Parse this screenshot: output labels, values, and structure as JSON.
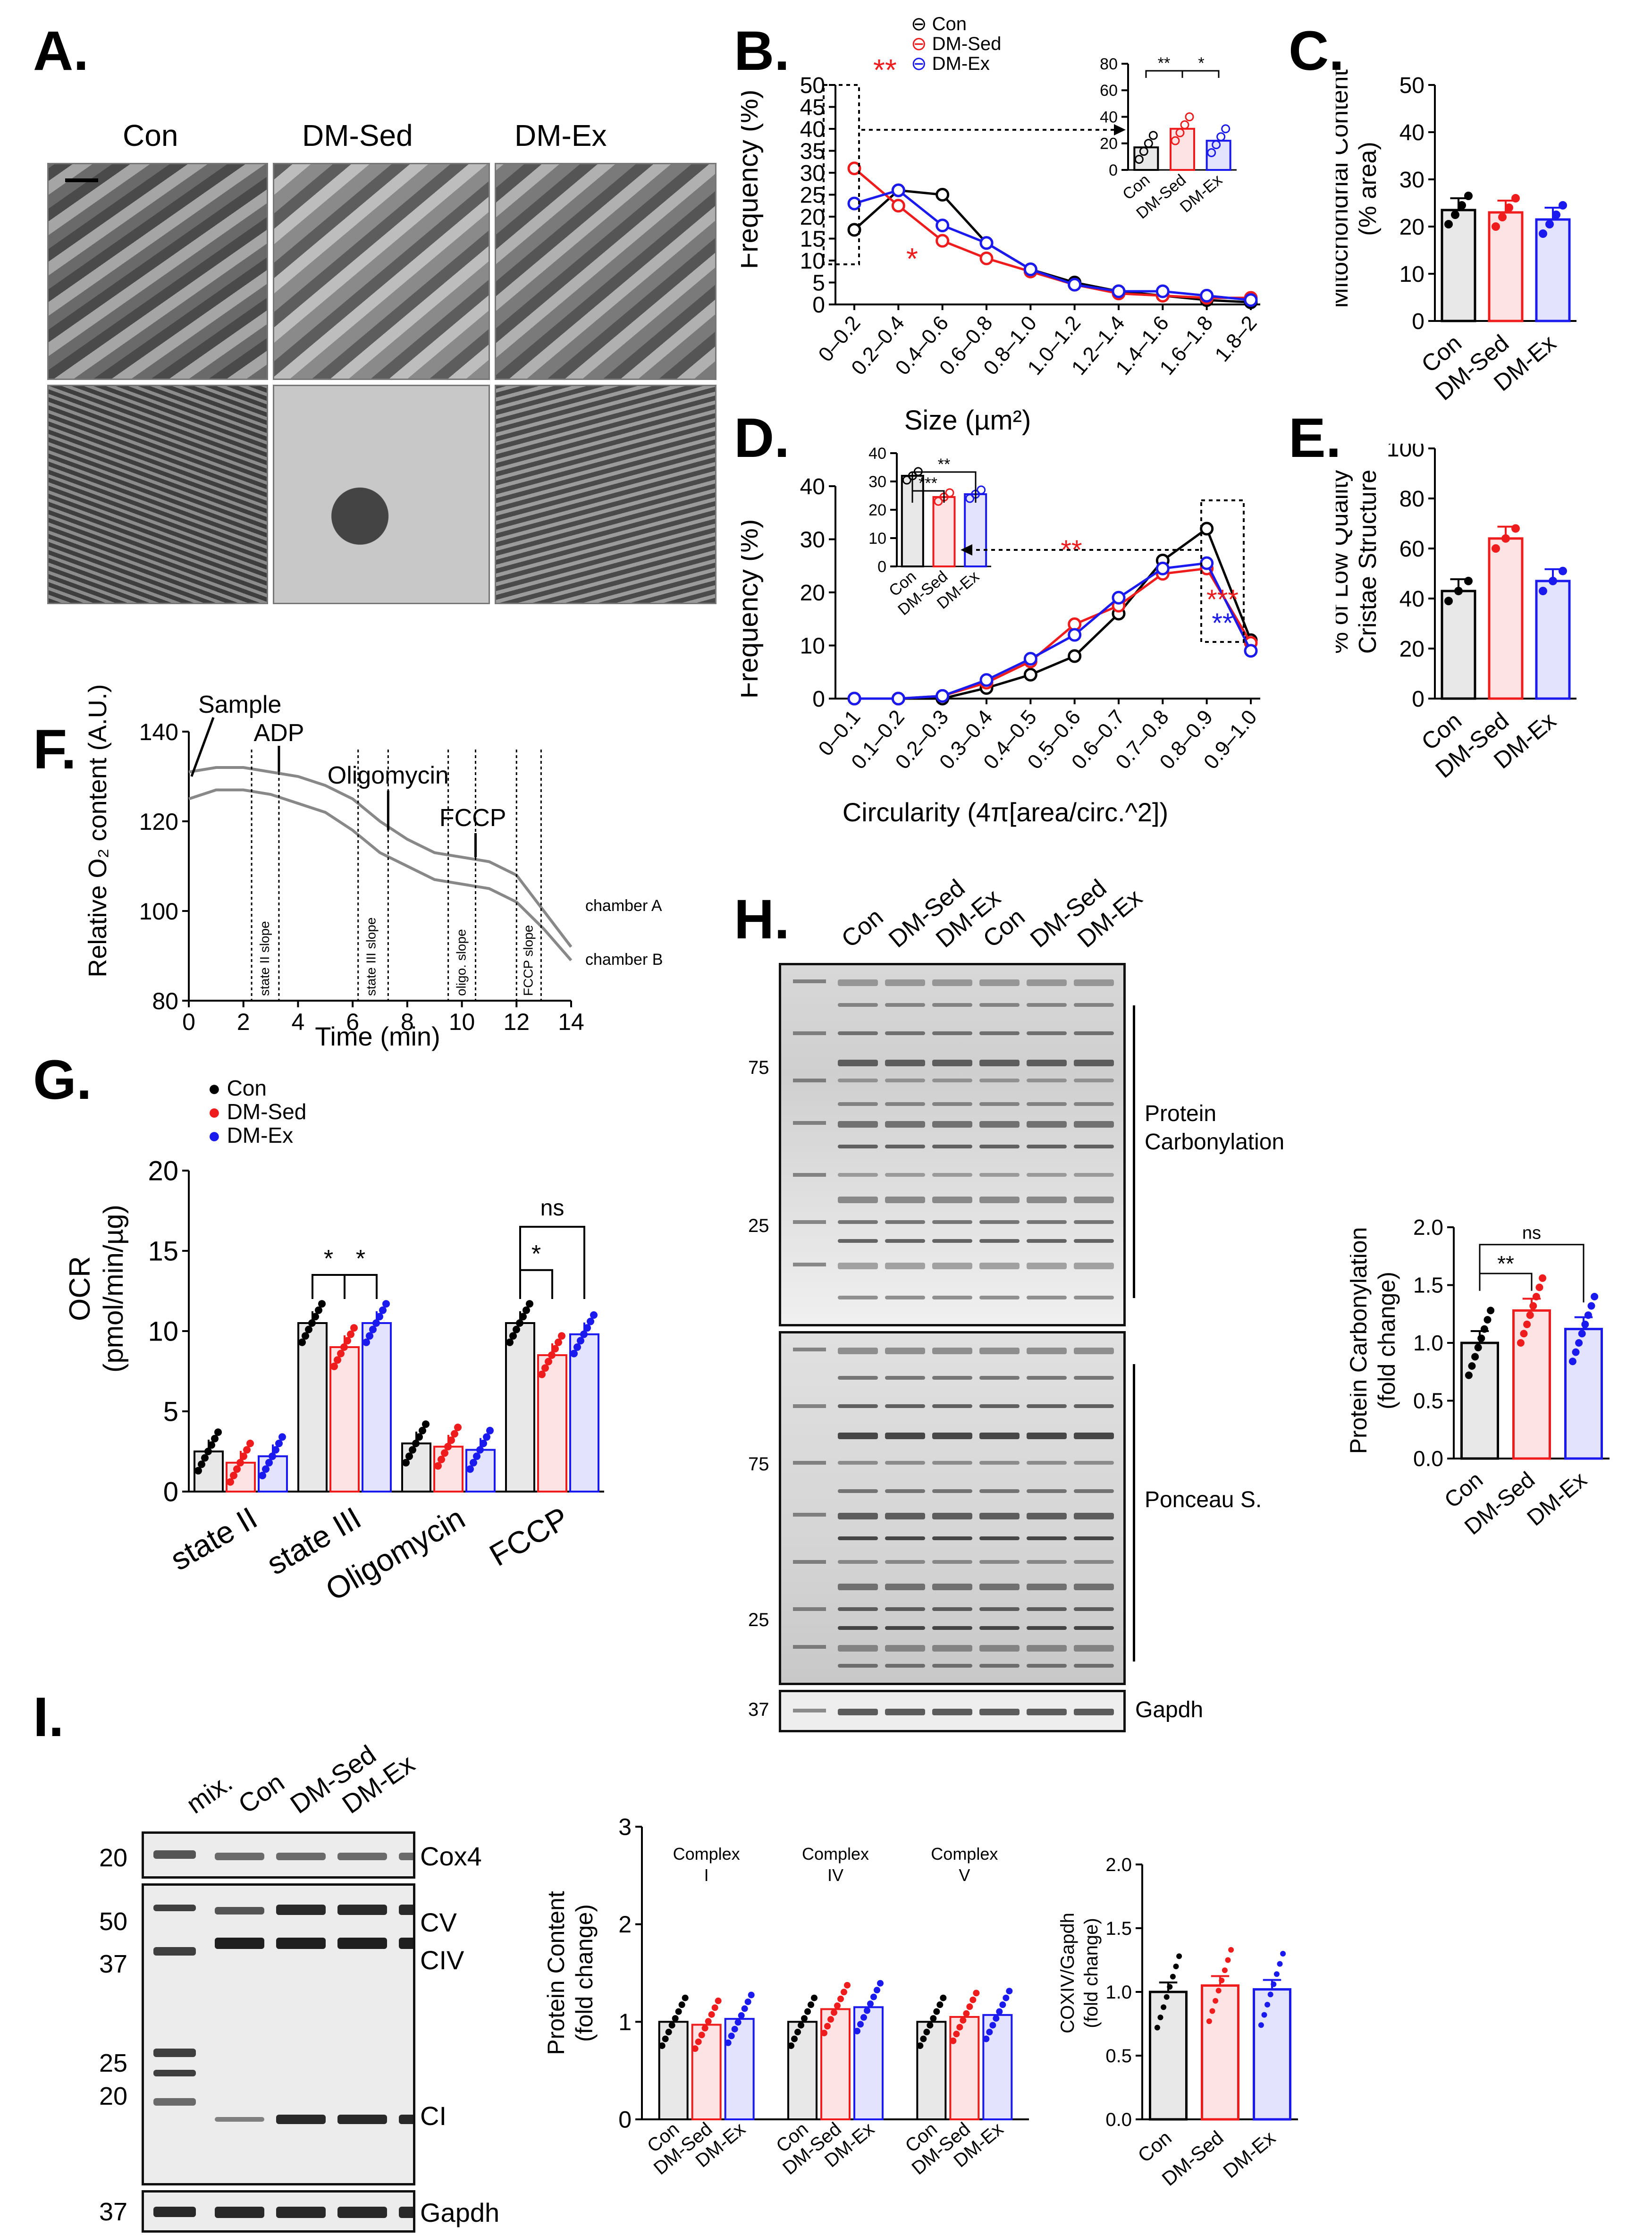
{
  "colors": {
    "con": "#000000",
    "dm_sed": "#ee1c1c",
    "dm_ex": "#1a1aee"
  },
  "panel_letters": {
    "A": "A.",
    "B": "B.",
    "C": "C.",
    "D": "D.",
    "E": "E.",
    "F": "F.",
    "G": "G.",
    "H": "H.",
    "I": "I."
  },
  "panelA": {
    "columns": [
      "Con",
      "DM-Sed",
      "DM-Ex"
    ]
  },
  "panelB": {
    "ylabel": "Frequency (%)",
    "xlabel": "Size (µm²)"
  },
  "panelC": {
    "ylabel1": "Mitochondrial Content",
    "ylabel2": "(% area)"
  },
  "panelD": {
    "ylabel": "Frequency (%)",
    "xlabel": "Circularity (4π[area/circ.^2])"
  },
  "panelE": {
    "ylabel1": "% of Low Quality",
    "ylabel2": "Cristae Structure"
  },
  "panelF": {
    "ylabel": "Relative O₂ content (A.U.)",
    "xlabel": "Time (min)",
    "annotations": {
      "sample": "Sample",
      "adp": "ADP",
      "oligo": "Oligomycin",
      "fccp": "FCCP",
      "chamberA": "chamber A",
      "chamberB": "chamber B",
      "s2": "state II slope",
      "s3": "state III slope",
      "so": "oligo. slope",
      "sf": "FCCP slope"
    }
  },
  "panelG": {
    "ylabel1": "OCR",
    "ylabel2": "(pmol/min/µg)",
    "legend": [
      "Con",
      "DM-Sed",
      "DM-Ex"
    ]
  },
  "panelH": {
    "lanes": [
      "Con",
      "DM-Sed",
      "DM-Ex",
      "Con",
      "DM-Sed",
      "DM-Ex"
    ],
    "mw_top": [
      "75",
      "25"
    ],
    "mw_bottom": [
      "75",
      "25"
    ],
    "mw_gapdh": "37",
    "label1a": "Protein",
    "label1b": "Carbonylation",
    "label2": "Ponceau S.",
    "label3": "Gapdh",
    "bar_ylabel1": "Protein Carbonylation",
    "bar_ylabel2": "(fold change)"
  },
  "panelI": {
    "lanes": [
      "mix.",
      "Con",
      "DM-Sed",
      "DM-Ex"
    ],
    "mw1": "20",
    "mw2": [
      "50",
      "37",
      "25",
      "20"
    ],
    "mw3": "37",
    "bands": {
      "cox4": "Cox4",
      "cv": "CV",
      "civ": "CIV",
      "ci": "CI",
      "gapdh": "Gapdh"
    },
    "bar1_ylabel1": "Protein Content",
    "bar1_ylabel2": "(fold change)",
    "complex_labels": [
      [
        "Complex",
        "I"
      ],
      [
        "Complex",
        "IV"
      ],
      [
        "Complex",
        "V"
      ]
    ],
    "bar2_ylabel1": "COXIV/Gapdh",
    "bar2_ylabel2": "(fold change)"
  },
  "chart_data": [
    {
      "id": "B",
      "type": "line",
      "title": "",
      "xlabel": "Size (µm²)",
      "ylabel": "Frequency (%)",
      "categories": [
        "0–0.2",
        "0.2–0.4",
        "0.4–0.6",
        "0.6–0.8",
        "0.8–1.0",
        "1.0–1.2",
        "1.2–1.4",
        "1.4–1.6",
        "1.6–1.8",
        "1.8–2"
      ],
      "ylim": [
        0,
        50
      ],
      "yticks": [
        0,
        5,
        10,
        15,
        20,
        25,
        30,
        35,
        40,
        45,
        50
      ],
      "series": [
        {
          "name": "Con",
          "values": [
            17,
            26,
            25,
            14,
            8,
            5,
            3,
            2,
            1,
            0.5
          ]
        },
        {
          "name": "DM-Sed",
          "values": [
            31,
            22.5,
            14.5,
            10.5,
            7.5,
            4.5,
            2.5,
            2,
            1.5,
            1.5
          ]
        },
        {
          "name": "DM-Ex",
          "values": [
            23,
            26,
            18,
            14,
            8,
            4.5,
            3,
            3,
            2,
            1
          ]
        }
      ],
      "significance": [
        "**",
        "*"
      ],
      "inset": {
        "type": "bar",
        "categories": [
          "Con",
          "DM-Sed",
          "DM-Ex"
        ],
        "values": [
          17,
          31,
          22
        ],
        "ylim": [
          0,
          80
        ],
        "yticks": [
          0,
          20,
          40,
          60,
          80
        ],
        "significance": [
          "**",
          "*"
        ]
      }
    },
    {
      "id": "C",
      "type": "bar",
      "ylabel": "Mitochondrial Content (% area)",
      "categories": [
        "Con",
        "DM-Sed",
        "DM-Ex"
      ],
      "values": [
        23.5,
        23,
        21.5
      ],
      "ylim": [
        0,
        50
      ],
      "yticks": [
        0,
        10,
        20,
        30,
        40,
        50
      ]
    },
    {
      "id": "D",
      "type": "line",
      "xlabel": "Circularity (4π[area/circ.^2])",
      "ylabel": "Frequency (%)",
      "categories": [
        "0–0.1",
        "0.1–0.2",
        "0.2–0.3",
        "0.3–0.4",
        "0.4–0.5",
        "0.5–0.6",
        "0.6–0.7",
        "0.7–0.8",
        "0.8–0.9",
        "0.9–1.0"
      ],
      "ylim": [
        0,
        40
      ],
      "yticks": [
        0,
        10,
        20,
        30,
        40
      ],
      "series": [
        {
          "name": "Con",
          "values": [
            0,
            0,
            0,
            2,
            4.5,
            8,
            16,
            26,
            32,
            11
          ]
        },
        {
          "name": "DM-Sed",
          "values": [
            0,
            0,
            0.5,
            3,
            7,
            14,
            17.5,
            23.5,
            24.5,
            10.5
          ]
        },
        {
          "name": "DM-Ex",
          "values": [
            0,
            0,
            0.5,
            3.5,
            7.5,
            12,
            19,
            24.5,
            25.5,
            9
          ]
        }
      ],
      "significance": [
        "**",
        "***",
        "**"
      ],
      "inset": {
        "type": "bar",
        "categories": [
          "Con",
          "DM-Sed",
          "DM-Ex"
        ],
        "values": [
          32,
          24.5,
          25.5
        ],
        "ylim": [
          0,
          40
        ],
        "yticks": [
          0,
          10,
          20,
          30,
          40
        ],
        "significance": [
          "***",
          "**"
        ]
      }
    },
    {
      "id": "E",
      "type": "bar",
      "ylabel": "% of Low Quality Cristae Structure",
      "categories": [
        "Con",
        "DM-Sed",
        "DM-Ex"
      ],
      "values": [
        43,
        64,
        47
      ],
      "ylim": [
        0,
        100
      ],
      "yticks": [
        0,
        20,
        40,
        60,
        80,
        100
      ]
    },
    {
      "id": "F",
      "type": "line",
      "xlabel": "Time (min)",
      "ylabel": "Relative O₂ content (A.U.)",
      "xlim": [
        0,
        14
      ],
      "ylim": [
        80,
        140
      ],
      "xticks": [
        0,
        2,
        4,
        6,
        8,
        10,
        12,
        14
      ],
      "yticks": [
        80,
        100,
        120,
        140
      ],
      "series": [
        {
          "name": "chamber A",
          "x": [
            0,
            1,
            2,
            3,
            4,
            5,
            6,
            7,
            8,
            9,
            10,
            11,
            12,
            13,
            14
          ],
          "y": [
            131,
            132,
            132,
            131,
            130,
            128,
            125,
            120,
            116,
            113,
            112,
            111,
            108,
            100,
            92
          ]
        },
        {
          "name": "chamber B",
          "x": [
            0,
            1,
            2,
            3,
            4,
            5,
            6,
            7,
            8,
            9,
            10,
            11,
            12,
            13,
            14
          ],
          "y": [
            125,
            127,
            127,
            126,
            124,
            122,
            118,
            113,
            110,
            107,
            106,
            105,
            102,
            96,
            89
          ]
        }
      ]
    },
    {
      "id": "G",
      "type": "bar",
      "ylabel": "OCR (pmol/min/µg)",
      "categories": [
        "state II",
        "state III",
        "Oligomycin",
        "FCCP"
      ],
      "ylim": [
        0,
        20
      ],
      "yticks": [
        0,
        5,
        10,
        15,
        20
      ],
      "series": [
        {
          "name": "Con",
          "values": [
            2.5,
            10.5,
            3,
            10.5
          ]
        },
        {
          "name": "DM-Sed",
          "values": [
            1.8,
            9,
            2.8,
            8.5
          ]
        },
        {
          "name": "DM-Ex",
          "values": [
            2.2,
            10.5,
            2.6,
            9.8
          ]
        }
      ],
      "significance": [
        "*",
        "*",
        "*",
        "ns"
      ]
    },
    {
      "id": "H-bar",
      "type": "bar",
      "ylabel": "Protein Carbonylation (fold change)",
      "categories": [
        "Con",
        "DM-Sed",
        "DM-Ex"
      ],
      "values": [
        1.0,
        1.28,
        1.12
      ],
      "ylim": [
        0,
        2
      ],
      "yticks": [
        0.0,
        0.5,
        1.0,
        1.5,
        2.0
      ],
      "significance": [
        "**",
        "ns"
      ]
    },
    {
      "id": "I-bar1",
      "type": "bar",
      "ylabel": "Protein Content (fold change)",
      "categories": [
        "Complex I",
        "Complex IV",
        "Complex V"
      ],
      "ylim": [
        0,
        3
      ],
      "yticks": [
        0,
        1,
        2,
        3
      ],
      "series": [
        {
          "name": "Con",
          "values": [
            1.0,
            1.0,
            1.0
          ]
        },
        {
          "name": "DM-Sed",
          "values": [
            0.97,
            1.13,
            1.05
          ]
        },
        {
          "name": "DM-Ex",
          "values": [
            1.03,
            1.15,
            1.07
          ]
        }
      ]
    },
    {
      "id": "I-bar2",
      "type": "bar",
      "ylabel": "COXIV/Gapdh (fold change)",
      "categories": [
        "Con",
        "DM-Sed",
        "DM-Ex"
      ],
      "values": [
        1.0,
        1.05,
        1.02
      ],
      "ylim": [
        0,
        2
      ],
      "yticks": [
        0.0,
        0.5,
        1.0,
        1.5,
        2.0
      ]
    }
  ]
}
